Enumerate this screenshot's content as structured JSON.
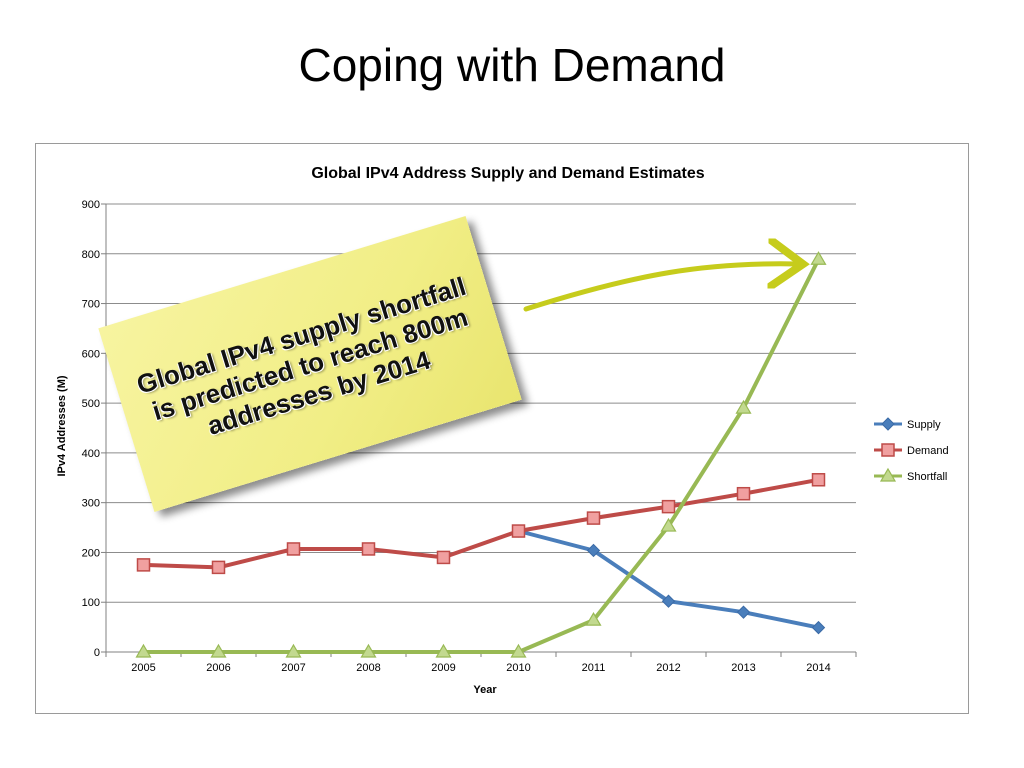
{
  "slide": {
    "title": "Coping with Demand"
  },
  "callout": {
    "text": "Global IPv4 supply shortfall is predicted to reach 800m addresses by 2014"
  },
  "chart_data": {
    "type": "line",
    "title": "Global IPv4 Address Supply and Demand Estimates",
    "xlabel": "Year",
    "ylabel": "IPv4 Addresses (M)",
    "categories": [
      "2005",
      "2006",
      "2007",
      "2008",
      "2009",
      "2010",
      "2011",
      "2012",
      "2013",
      "2014"
    ],
    "ylim": [
      0,
      900
    ],
    "yticks": [
      0,
      100,
      200,
      300,
      400,
      500,
      600,
      700,
      800,
      900
    ],
    "grid": true,
    "legend_position": "right",
    "series": [
      {
        "name": "Supply",
        "color": "#4a7ebb",
        "marker": "diamond",
        "values": [
          null,
          null,
          null,
          null,
          null,
          243,
          204,
          102,
          80,
          49
        ]
      },
      {
        "name": "Demand",
        "color": "#be4b48",
        "marker": "square",
        "values": [
          175,
          170,
          207,
          207,
          190,
          243,
          269,
          292,
          318,
          346
        ]
      },
      {
        "name": "Shortfall",
        "color": "#98b954",
        "marker": "triangle",
        "values": [
          0,
          0,
          0,
          0,
          0,
          0,
          64,
          253,
          490,
          789
        ]
      }
    ]
  }
}
